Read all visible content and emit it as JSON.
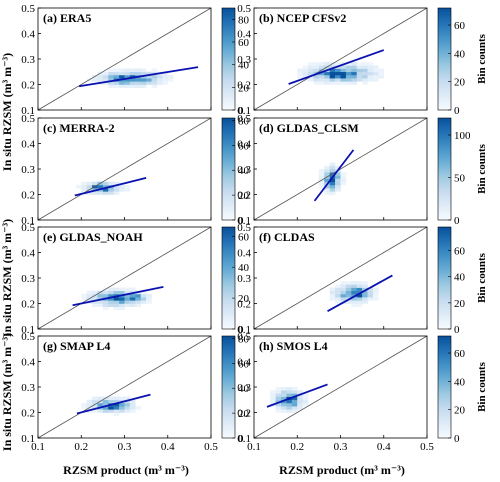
{
  "figure": {
    "x_axis_label": "RZSM product (m³ m⁻³)",
    "y_axis_label": "In situ RZSM (m³ m⁻³)",
    "colorbar_label": "Bin counts",
    "colormap": [
      "#f7fbff",
      "#deebf7",
      "#c6dbef",
      "#9ecae1",
      "#6baed6",
      "#4292c6",
      "#2171b5",
      "#08519c"
    ],
    "fit_line_color": "#0a12b0",
    "one_to_one_line_color": "#555555"
  },
  "chart_data": [
    {
      "type": "heatmap",
      "title": "(a) ERA5",
      "xlim": [
        0.1,
        0.5
      ],
      "ylim": [
        0.1,
        0.5
      ],
      "xticks": [
        "0.1",
        "0.2",
        "0.3",
        "0.4",
        "0.5"
      ],
      "yticks": [
        "0.1",
        "0.2",
        "0.3",
        "0.4",
        "0.5"
      ],
      "x_tick_labels_shown": false,
      "colorbar": {
        "min": 0,
        "max": 90,
        "ticks": [
          "0",
          "20",
          "40",
          "60",
          "80"
        ]
      },
      "one_to_one_line": true,
      "fit_line": {
        "x": [
          0.195,
          0.47
        ],
        "y": [
          0.193,
          0.268
        ]
      },
      "cluster": {
        "x_center": 0.315,
        "y_center": 0.225,
        "x_spread": 0.075,
        "y_spread": 0.028,
        "peak": [
          0.3,
          0.22
        ]
      },
      "show_colorbar_title": false
    },
    {
      "type": "heatmap",
      "title": "(b) NCEP CFSv2",
      "xlim": [
        0.1,
        0.5
      ],
      "ylim": [
        0.1,
        0.5
      ],
      "xticks": [
        "0.1",
        "0.2",
        "0.3",
        "0.4",
        "0.5"
      ],
      "yticks": [
        "0.1",
        "0.2",
        "0.3",
        "0.4",
        "0.5"
      ],
      "x_tick_labels_shown": false,
      "colorbar": {
        "min": 0,
        "max": 72,
        "ticks": [
          "0",
          "20",
          "40",
          "60"
        ]
      },
      "one_to_one_line": true,
      "fit_line": {
        "x": [
          0.18,
          0.4
        ],
        "y": [
          0.202,
          0.335
        ]
      },
      "cluster": {
        "x_center": 0.3,
        "y_center": 0.245,
        "x_spread": 0.08,
        "y_spread": 0.035,
        "peak": [
          0.29,
          0.235
        ]
      },
      "show_colorbar_title": true
    },
    {
      "type": "heatmap",
      "title": "(c) MERRA-2",
      "xlim": [
        0.1,
        0.5
      ],
      "ylim": [
        0.1,
        0.5
      ],
      "xticks": [
        "0.1",
        "0.2",
        "0.3",
        "0.4",
        "0.5"
      ],
      "yticks": [
        "0.1",
        "0.2",
        "0.3",
        "0.4",
        "0.5"
      ],
      "x_tick_labels_shown": false,
      "colorbar": {
        "min": 0,
        "max": 82,
        "ticks": [
          "0",
          "20",
          "40",
          "60",
          "80"
        ]
      },
      "one_to_one_line": true,
      "fit_line": {
        "x": [
          0.185,
          0.35
        ],
        "y": [
          0.196,
          0.265
        ]
      },
      "cluster": {
        "x_center": 0.25,
        "y_center": 0.225,
        "x_spread": 0.045,
        "y_spread": 0.022,
        "peak": [
          0.24,
          0.235
        ]
      },
      "show_colorbar_title": false
    },
    {
      "type": "heatmap",
      "title": "(d) GLDAS_CLSM",
      "xlim": [
        0.1,
        0.5
      ],
      "ylim": [
        0.1,
        0.5
      ],
      "xticks": [
        "0.1",
        "0.2",
        "0.3",
        "0.4",
        "0.5"
      ],
      "yticks": [
        "0.1",
        "0.2",
        "0.3",
        "0.4",
        "0.5"
      ],
      "x_tick_labels_shown": false,
      "colorbar": {
        "min": 0,
        "max": 120,
        "ticks": [
          "0",
          "50",
          "100"
        ]
      },
      "one_to_one_line": true,
      "fit_line": {
        "x": [
          0.24,
          0.33
        ],
        "y": [
          0.175,
          0.375
        ]
      },
      "cluster": {
        "x_center": 0.28,
        "y_center": 0.26,
        "x_spread": 0.022,
        "y_spread": 0.05,
        "peak": [
          0.28,
          0.25
        ]
      },
      "show_colorbar_title": true
    },
    {
      "type": "heatmap",
      "title": "(e) GLDAS_NOAH",
      "xlim": [
        0.1,
        0.5
      ],
      "ylim": [
        0.1,
        0.5
      ],
      "xticks": [
        "0.1",
        "0.2",
        "0.3",
        "0.4",
        "0.5"
      ],
      "yticks": [
        "0.1",
        "0.2",
        "0.3",
        "0.4",
        "0.5"
      ],
      "x_tick_labels_shown": false,
      "colorbar": {
        "min": 0,
        "max": 66,
        "ticks": [
          "0",
          "20",
          "40",
          "60"
        ]
      },
      "one_to_one_line": true,
      "fit_line": {
        "x": [
          0.18,
          0.39
        ],
        "y": [
          0.193,
          0.265
        ]
      },
      "cluster": {
        "x_center": 0.28,
        "y_center": 0.222,
        "x_spread": 0.06,
        "y_spread": 0.032,
        "peak": [
          0.325,
          0.225
        ]
      },
      "show_colorbar_title": false
    },
    {
      "type": "heatmap",
      "title": "(f) CLDAS",
      "xlim": [
        0.1,
        0.5
      ],
      "ylim": [
        0.1,
        0.5
      ],
      "xticks": [
        "0.1",
        "0.2",
        "0.3",
        "0.4",
        "0.5"
      ],
      "yticks": [
        "0.1",
        "0.2",
        "0.3",
        "0.4",
        "0.5"
      ],
      "x_tick_labels_shown": false,
      "colorbar": {
        "min": 0,
        "max": 78,
        "ticks": [
          "0",
          "20",
          "40",
          "60"
        ]
      },
      "one_to_one_line": true,
      "fit_line": {
        "x": [
          0.27,
          0.42
        ],
        "y": [
          0.17,
          0.31
        ]
      },
      "cluster": {
        "x_center": 0.33,
        "y_center": 0.24,
        "x_spread": 0.045,
        "y_spread": 0.035,
        "peak": [
          0.34,
          0.245
        ]
      },
      "show_colorbar_title": true
    },
    {
      "type": "heatmap",
      "title": "(g) SMAP L4",
      "xlim": [
        0.1,
        0.5
      ],
      "ylim": [
        0.1,
        0.5
      ],
      "xticks": [
        "0.1",
        "0.2",
        "0.3",
        "0.4",
        "0.5"
      ],
      "yticks": [
        "0.1",
        "0.2",
        "0.3",
        "0.4",
        "0.5"
      ],
      "x_tick_labels_shown": true,
      "colorbar": {
        "min": 0,
        "max": 82,
        "ticks": [
          "0",
          "20",
          "40",
          "60",
          "80"
        ]
      },
      "one_to_one_line": true,
      "fit_line": {
        "x": [
          0.19,
          0.36
        ],
        "y": [
          0.196,
          0.27
        ]
      },
      "cluster": {
        "x_center": 0.27,
        "y_center": 0.23,
        "x_spread": 0.05,
        "y_spread": 0.028,
        "peak": [
          0.27,
          0.22
        ]
      },
      "show_colorbar_title": false
    },
    {
      "type": "heatmap",
      "title": "(h) SMOS L4",
      "xlim": [
        0.1,
        0.5
      ],
      "ylim": [
        0.1,
        0.5
      ],
      "xticks": [
        "0.1",
        "0.2",
        "0.3",
        "0.4",
        "0.5"
      ],
      "yticks": [
        "0.1",
        "0.2",
        "0.3",
        "0.4",
        "0.5"
      ],
      "x_tick_labels_shown": true,
      "colorbar": {
        "min": 0,
        "max": 72,
        "ticks": [
          "0",
          "20",
          "40",
          "60"
        ]
      },
      "one_to_one_line": true,
      "fit_line": {
        "x": [
          0.13,
          0.27
        ],
        "y": [
          0.222,
          0.31
        ]
      },
      "cluster": {
        "x_center": 0.18,
        "y_center": 0.25,
        "x_spread": 0.035,
        "y_spread": 0.04,
        "peak": [
          0.18,
          0.245
        ]
      },
      "show_colorbar_title": true
    }
  ]
}
